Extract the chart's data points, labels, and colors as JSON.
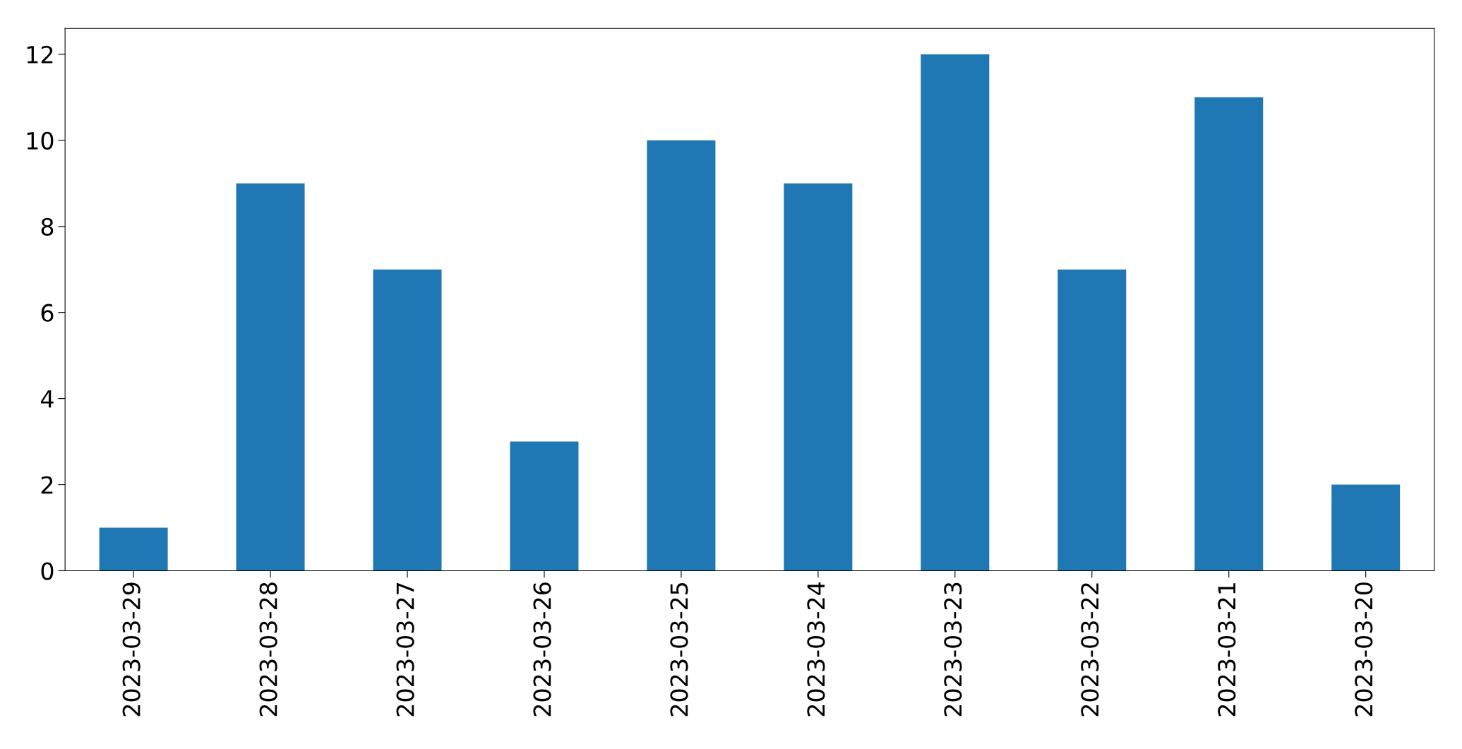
{
  "chart_data": {
    "type": "bar",
    "categories": [
      "2023-03-29",
      "2023-03-28",
      "2023-03-27",
      "2023-03-26",
      "2023-03-25",
      "2023-03-24",
      "2023-03-23",
      "2023-03-22",
      "2023-03-21",
      "2023-03-20"
    ],
    "values": [
      1,
      9,
      7,
      3,
      10,
      9,
      12,
      7,
      11,
      2
    ],
    "color": "#1f77b4",
    "ylim": [
      0,
      12.6
    ],
    "yticks": [
      0,
      2,
      4,
      6,
      8,
      10,
      12
    ],
    "grid": false,
    "legend": false
  }
}
